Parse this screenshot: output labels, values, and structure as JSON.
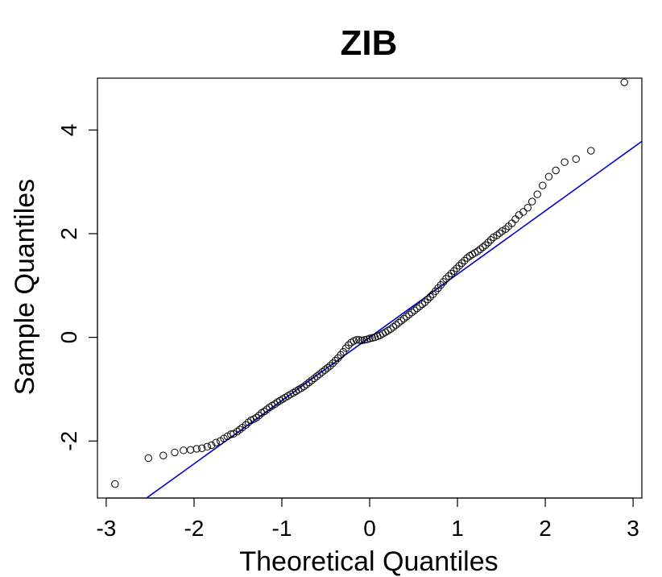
{
  "chart_data": {
    "type": "scatter",
    "title": "ZIB",
    "xlabel": "Theoretical Quantiles",
    "ylabel": "Sample Quantiles",
    "xlim": [
      -3.1,
      3.1
    ],
    "ylim": [
      -3.1,
      5.0
    ],
    "x_ticks": [
      "-3",
      "-2",
      "-1",
      "0",
      "1",
      "2",
      "3"
    ],
    "y_ticks": [
      "-2",
      "0",
      "2",
      "4"
    ],
    "point_color": "#000000",
    "line_color": "#0000cc",
    "reference_line": {
      "intercept": 0.0,
      "slope": 1.22
    },
    "series": [
      {
        "points": [
          [
            -2.9,
            -2.83
          ],
          [
            -2.52,
            -2.33
          ],
          [
            -2.35,
            -2.28
          ],
          [
            -2.22,
            -2.22
          ],
          [
            -2.12,
            -2.18
          ],
          [
            -2.04,
            -2.17
          ],
          [
            -1.97,
            -2.15
          ],
          [
            -1.91,
            -2.14
          ],
          [
            -1.85,
            -2.11
          ],
          [
            -1.8,
            -2.08
          ],
          [
            -1.75,
            -2.03
          ],
          [
            -1.7,
            -2.0
          ],
          [
            -1.66,
            -1.95
          ],
          [
            -1.62,
            -1.91
          ],
          [
            -1.58,
            -1.87
          ],
          [
            -1.55,
            -1.86
          ],
          [
            -1.51,
            -1.82
          ],
          [
            -1.48,
            -1.78
          ],
          [
            -1.45,
            -1.74
          ],
          [
            -1.41,
            -1.69
          ],
          [
            -1.38,
            -1.64
          ],
          [
            -1.35,
            -1.6
          ],
          [
            -1.32,
            -1.58
          ],
          [
            -1.29,
            -1.55
          ],
          [
            -1.26,
            -1.51
          ],
          [
            -1.23,
            -1.46
          ],
          [
            -1.2,
            -1.43
          ],
          [
            -1.17,
            -1.39
          ],
          [
            -1.14,
            -1.35
          ],
          [
            -1.11,
            -1.32
          ],
          [
            -1.08,
            -1.29
          ],
          [
            -1.05,
            -1.25
          ],
          [
            -1.02,
            -1.22
          ],
          [
            -0.99,
            -1.19
          ],
          [
            -0.96,
            -1.16
          ],
          [
            -0.93,
            -1.13
          ],
          [
            -0.9,
            -1.1
          ],
          [
            -0.87,
            -1.07
          ],
          [
            -0.84,
            -1.04
          ],
          [
            -0.81,
            -1.01
          ],
          [
            -0.78,
            -0.98
          ],
          [
            -0.75,
            -0.95
          ],
          [
            -0.72,
            -0.91
          ],
          [
            -0.69,
            -0.87
          ],
          [
            -0.66,
            -0.83
          ],
          [
            -0.63,
            -0.79
          ],
          [
            -0.6,
            -0.75
          ],
          [
            -0.57,
            -0.71
          ],
          [
            -0.54,
            -0.67
          ],
          [
            -0.51,
            -0.63
          ],
          [
            -0.48,
            -0.59
          ],
          [
            -0.45,
            -0.55
          ],
          [
            -0.42,
            -0.5
          ],
          [
            -0.39,
            -0.45
          ],
          [
            -0.36,
            -0.4
          ],
          [
            -0.33,
            -0.34
          ],
          [
            -0.3,
            -0.28
          ],
          [
            -0.27,
            -0.21
          ],
          [
            -0.24,
            -0.15
          ],
          [
            -0.21,
            -0.1
          ],
          [
            -0.18,
            -0.07
          ],
          [
            -0.15,
            -0.05
          ],
          [
            -0.12,
            -0.05
          ],
          [
            -0.09,
            -0.06
          ],
          [
            -0.06,
            -0.05
          ],
          [
            -0.03,
            -0.04
          ],
          [
            0.0,
            -0.02
          ],
          [
            0.03,
            -0.01
          ],
          [
            0.06,
            0.0
          ],
          [
            0.09,
            0.02
          ],
          [
            0.12,
            0.04
          ],
          [
            0.15,
            0.07
          ],
          [
            0.18,
            0.1
          ],
          [
            0.21,
            0.13
          ],
          [
            0.24,
            0.16
          ],
          [
            0.27,
            0.2
          ],
          [
            0.3,
            0.24
          ],
          [
            0.33,
            0.28
          ],
          [
            0.36,
            0.32
          ],
          [
            0.39,
            0.36
          ],
          [
            0.42,
            0.4
          ],
          [
            0.45,
            0.44
          ],
          [
            0.48,
            0.48
          ],
          [
            0.51,
            0.52
          ],
          [
            0.54,
            0.56
          ],
          [
            0.57,
            0.6
          ],
          [
            0.6,
            0.64
          ],
          [
            0.63,
            0.68
          ],
          [
            0.66,
            0.73
          ],
          [
            0.69,
            0.78
          ],
          [
            0.72,
            0.83
          ],
          [
            0.75,
            0.89
          ],
          [
            0.78,
            0.95
          ],
          [
            0.81,
            1.01
          ],
          [
            0.84,
            1.07
          ],
          [
            0.87,
            1.13
          ],
          [
            0.9,
            1.18
          ],
          [
            0.93,
            1.23
          ],
          [
            0.96,
            1.28
          ],
          [
            0.99,
            1.33
          ],
          [
            1.02,
            1.38
          ],
          [
            1.05,
            1.43
          ],
          [
            1.08,
            1.48
          ],
          [
            1.11,
            1.53
          ],
          [
            1.14,
            1.57
          ],
          [
            1.17,
            1.6
          ],
          [
            1.2,
            1.63
          ],
          [
            1.23,
            1.66
          ],
          [
            1.26,
            1.7
          ],
          [
            1.29,
            1.74
          ],
          [
            1.32,
            1.78
          ],
          [
            1.35,
            1.83
          ],
          [
            1.38,
            1.88
          ],
          [
            1.41,
            1.93
          ],
          [
            1.45,
            1.97
          ],
          [
            1.48,
            2.01
          ],
          [
            1.51,
            2.05
          ],
          [
            1.55,
            2.09
          ],
          [
            1.58,
            2.14
          ],
          [
            1.62,
            2.2
          ],
          [
            1.66,
            2.28
          ],
          [
            1.7,
            2.36
          ],
          [
            1.75,
            2.42
          ],
          [
            1.8,
            2.5
          ],
          [
            1.85,
            2.62
          ],
          [
            1.91,
            2.76
          ],
          [
            1.97,
            2.93
          ],
          [
            2.04,
            3.1
          ],
          [
            2.12,
            3.22
          ],
          [
            2.22,
            3.38
          ],
          [
            2.35,
            3.44
          ],
          [
            2.52,
            3.6
          ],
          [
            2.9,
            4.92
          ]
        ]
      }
    ]
  }
}
